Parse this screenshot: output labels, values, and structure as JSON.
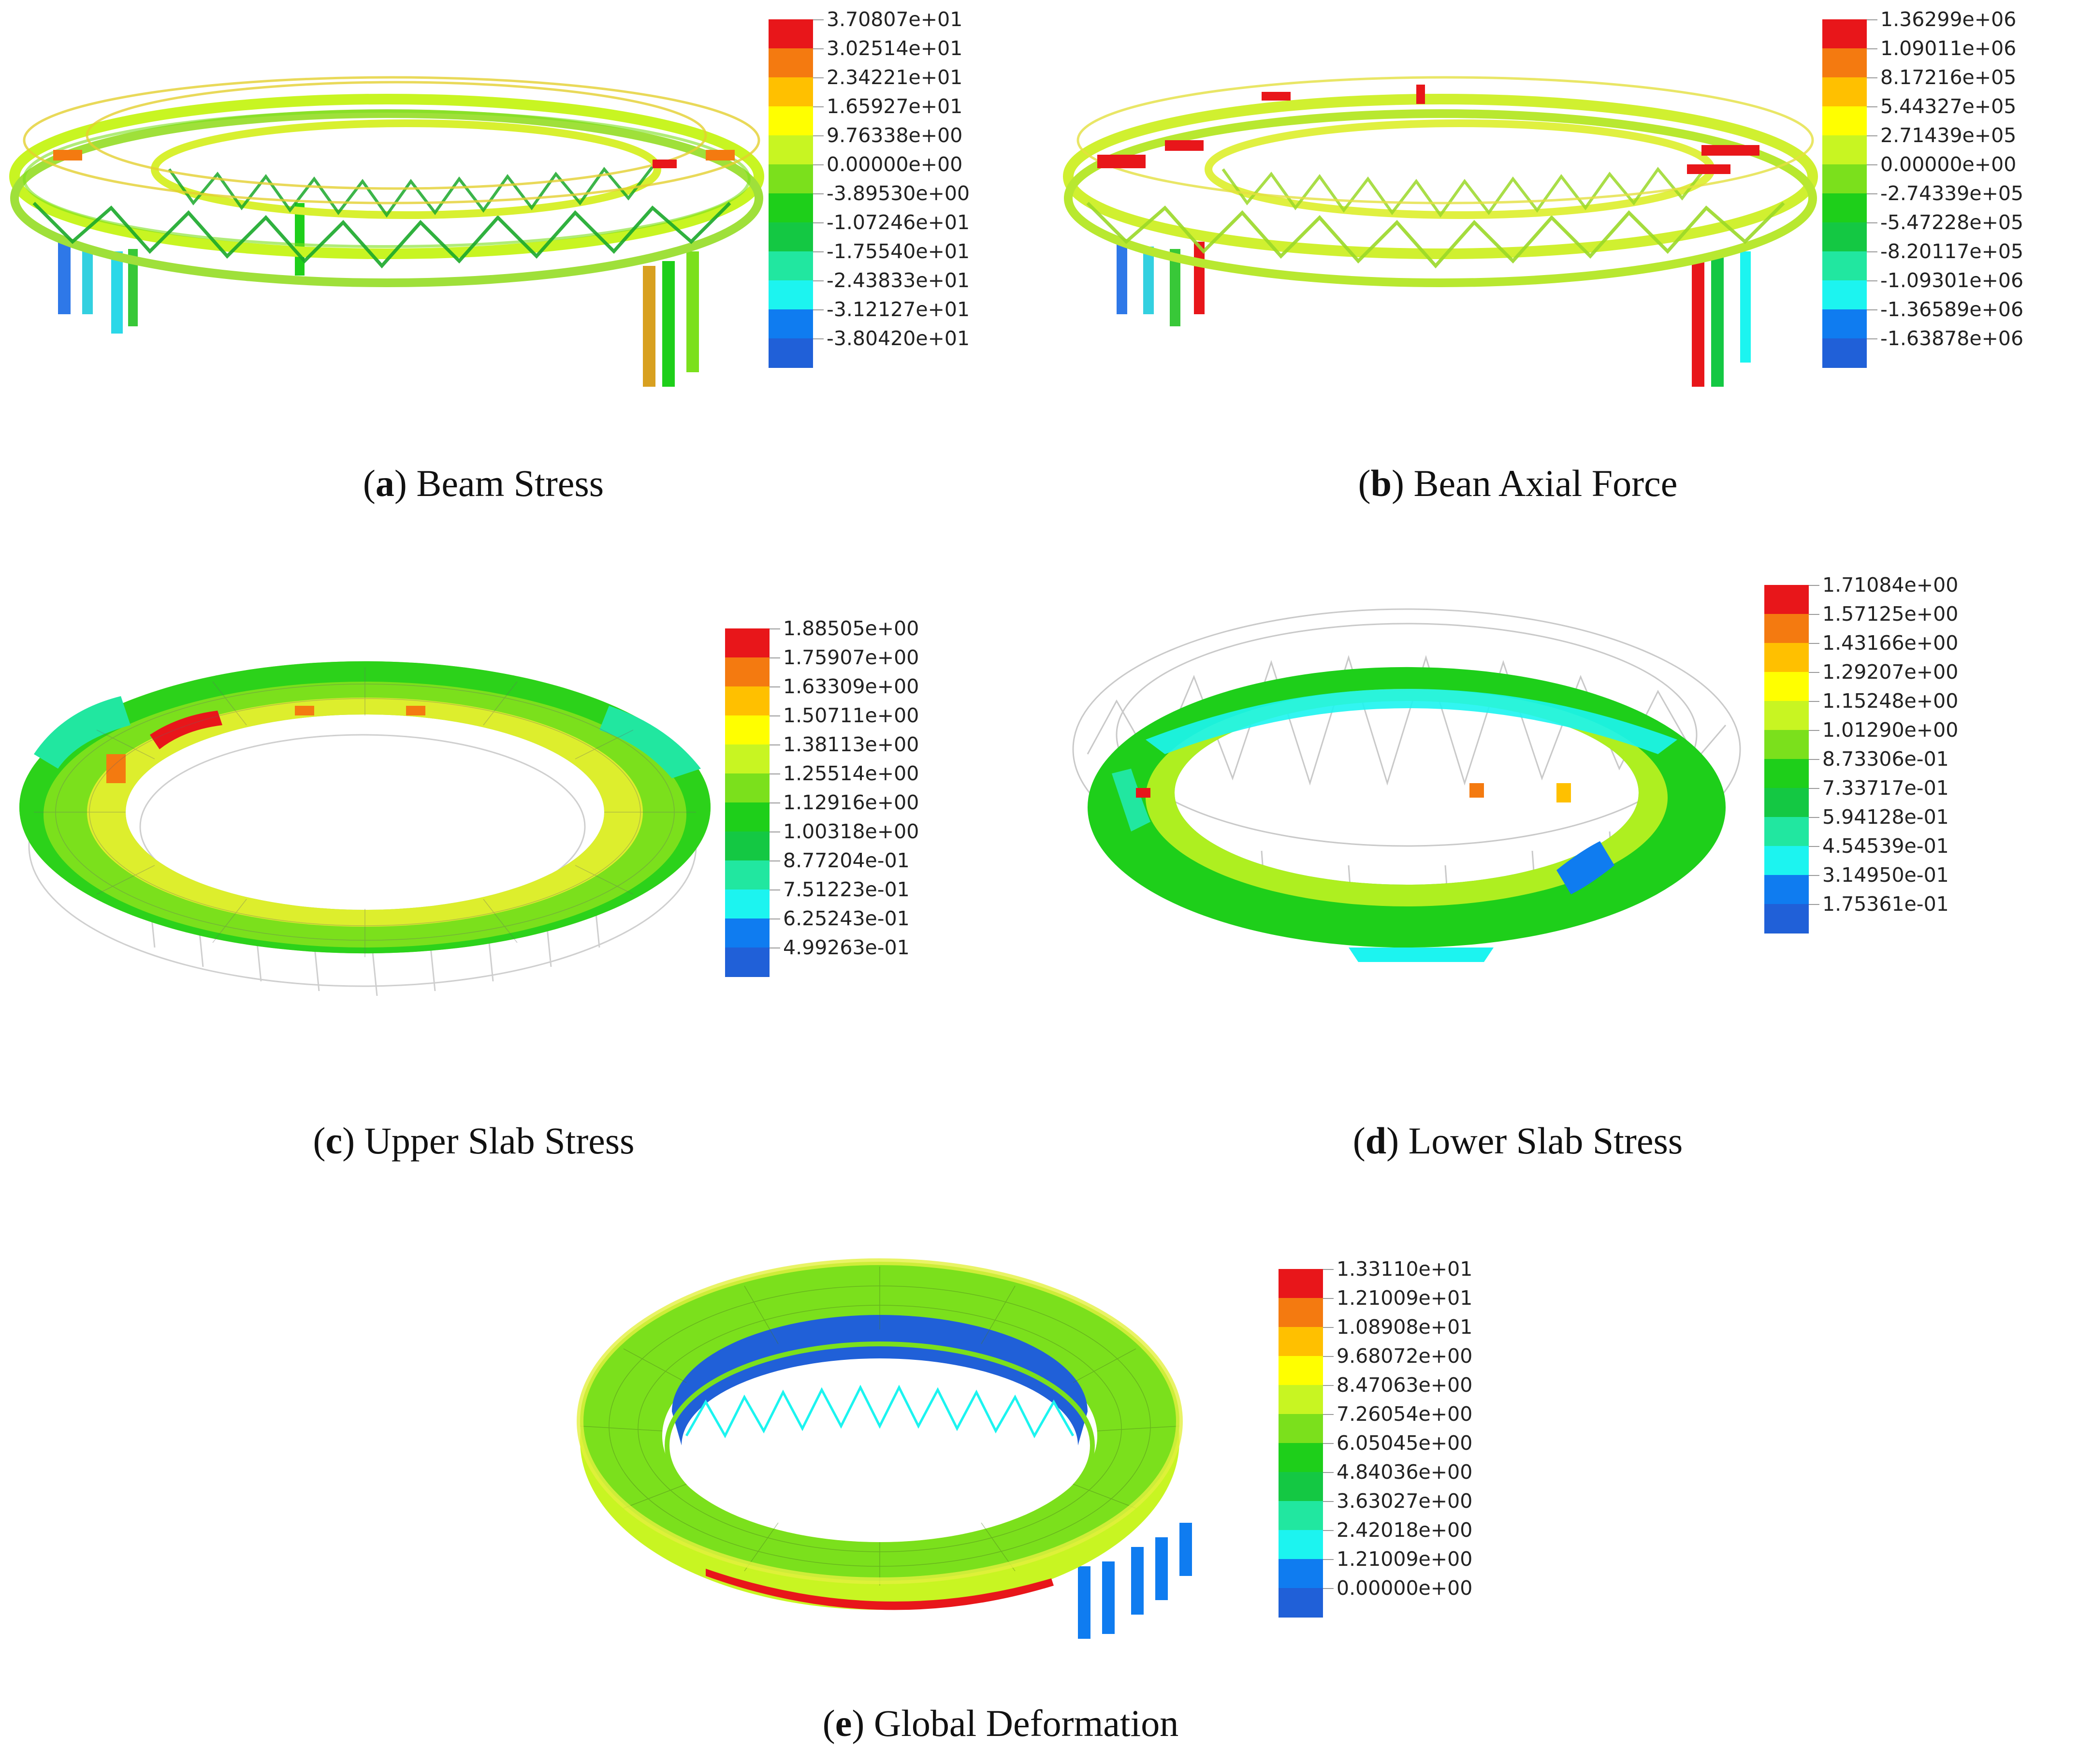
{
  "scale_colors": [
    "#e8161a",
    "#f47a10",
    "#ffc000",
    "#ffff00",
    "#c8f522",
    "#7be01c",
    "#1ecf1a",
    "#14c843",
    "#21e7a0",
    "#1cf4f0",
    "#0f7cf0",
    "#2060d8"
  ],
  "panels": [
    {
      "id": "a",
      "letter": "a",
      "title": "Beam Stress",
      "legend": [
        "3.70807e+01",
        "3.02514e+01",
        "2.34221e+01",
        "1.65927e+01",
        "9.76338e+00",
        "0.00000e+00",
        "-3.89530e+00",
        "-1.07246e+01",
        "-1.75540e+01",
        "-2.43833e+01",
        "-3.12127e+01",
        "-3.80420e+01"
      ]
    },
    {
      "id": "b",
      "letter": "b",
      "title": "Bean Axial Force",
      "legend": [
        "1.36299e+06",
        "1.09011e+06",
        "8.17216e+05",
        "5.44327e+05",
        "2.71439e+05",
        "0.00000e+00",
        "-2.74339e+05",
        "-5.47228e+05",
        "-8.20117e+05",
        "-1.09301e+06",
        "-1.36589e+06",
        "-1.63878e+06"
      ]
    },
    {
      "id": "c",
      "letter": "c",
      "title": "Upper Slab Stress",
      "legend": [
        "1.88505e+00",
        "1.75907e+00",
        "1.63309e+00",
        "1.50711e+00",
        "1.38113e+00",
        "1.25514e+00",
        "1.12916e+00",
        "1.00318e+00",
        "8.77204e-01",
        "7.51223e-01",
        "6.25243e-01",
        "4.99263e-01"
      ]
    },
    {
      "id": "d",
      "letter": "d",
      "title": "Lower Slab Stress",
      "legend": [
        "1.71084e+00",
        "1.57125e+00",
        "1.43166e+00",
        "1.29207e+00",
        "1.15248e+00",
        "1.01290e+00",
        "8.73306e-01",
        "7.33717e-01",
        "5.94128e-01",
        "4.54539e-01",
        "3.14950e-01",
        "1.75361e-01"
      ]
    },
    {
      "id": "e",
      "letter": "e",
      "title": "Global Deformation",
      "legend": [
        "1.33110e+01",
        "1.21009e+01",
        "1.08908e+01",
        "9.68072e+00",
        "8.47063e+00",
        "7.26054e+00",
        "6.05045e+00",
        "4.84036e+00",
        "3.63027e+00",
        "2.42018e+00",
        "1.21009e+00",
        "0.00000e+00"
      ]
    }
  ]
}
